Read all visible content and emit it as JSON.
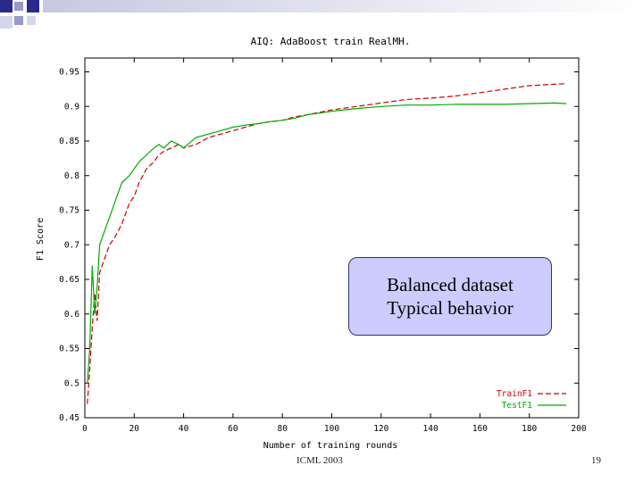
{
  "slide": {
    "callout_line1": "Balanced dataset",
    "callout_line2": "Typical behavior",
    "footer_left": "ICML 2003",
    "page_number": "19",
    "deco_colors": [
      "#2a2a8c",
      "#9999cc",
      "#d6d6ea"
    ]
  },
  "chart_data": {
    "type": "line",
    "title": "AIQ: AdaBoost train RealMH.",
    "xlabel": "Number of training rounds",
    "ylabel": "F1 Score",
    "xlim": [
      0,
      200
    ],
    "ylim": [
      0.45,
      0.97
    ],
    "x_ticks": [
      "0",
      "20",
      "40",
      "60",
      "80",
      "100",
      "120",
      "140",
      "160",
      "180",
      "200"
    ],
    "y_ticks": [
      "0.45",
      "0.5",
      "0.55",
      "0.6",
      "0.65",
      "0.7",
      "0.75",
      "0.8",
      "0.85",
      "0.9",
      "0.95"
    ],
    "legend_position": "bottom-right",
    "grid": false,
    "series": [
      {
        "name": "TrainF1",
        "color": "#cc0000",
        "dash": "6,3",
        "x": [
          1,
          2,
          3,
          4,
          5,
          6,
          8,
          10,
          12,
          15,
          18,
          20,
          22,
          25,
          28,
          30,
          32,
          35,
          38,
          40,
          45,
          50,
          55,
          60,
          65,
          70,
          75,
          80,
          85,
          90,
          100,
          110,
          120,
          130,
          140,
          150,
          160,
          170,
          180,
          190,
          195
        ],
        "y": [
          0.47,
          0.52,
          0.58,
          0.63,
          0.59,
          0.66,
          0.68,
          0.7,
          0.71,
          0.73,
          0.76,
          0.77,
          0.79,
          0.81,
          0.82,
          0.83,
          0.835,
          0.84,
          0.845,
          0.84,
          0.845,
          0.855,
          0.86,
          0.865,
          0.87,
          0.875,
          0.878,
          0.88,
          0.885,
          0.888,
          0.895,
          0.9,
          0.905,
          0.91,
          0.912,
          0.915,
          0.92,
          0.925,
          0.93,
          0.932,
          0.933
        ]
      },
      {
        "name": "TestF1",
        "color": "#00aa00",
        "dash": "",
        "x": [
          1,
          2,
          3,
          4,
          5,
          6,
          8,
          10,
          12,
          15,
          18,
          20,
          22,
          25,
          28,
          30,
          32,
          35,
          38,
          40,
          45,
          50,
          55,
          60,
          65,
          70,
          75,
          80,
          85,
          90,
          100,
          110,
          120,
          130,
          140,
          150,
          160,
          170,
          180,
          190,
          195
        ],
        "y": [
          0.5,
          0.55,
          0.67,
          0.6,
          0.64,
          0.7,
          0.72,
          0.74,
          0.76,
          0.79,
          0.8,
          0.81,
          0.82,
          0.83,
          0.84,
          0.845,
          0.84,
          0.85,
          0.845,
          0.84,
          0.855,
          0.86,
          0.865,
          0.87,
          0.873,
          0.875,
          0.878,
          0.88,
          0.883,
          0.888,
          0.893,
          0.897,
          0.9,
          0.902,
          0.902,
          0.903,
          0.903,
          0.903,
          0.904,
          0.905,
          0.904
        ]
      }
    ]
  }
}
